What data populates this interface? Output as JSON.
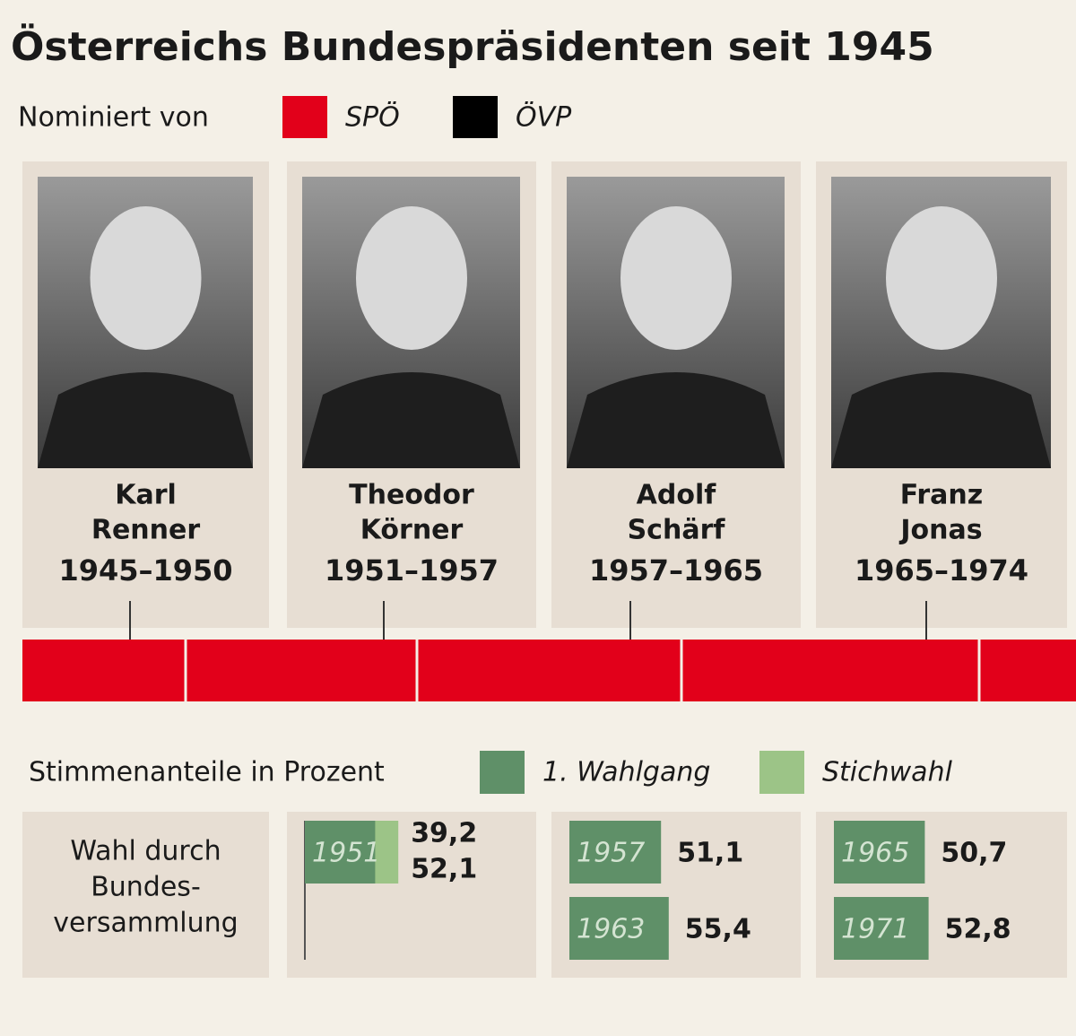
{
  "title": "Österreichs Bundespräsidenten seit 1945",
  "party_legend": {
    "label": "Nominiert von",
    "items": [
      {
        "name": "SPÖ",
        "color": "#e2001a"
      },
      {
        "name": "ÖVP",
        "color": "#000000"
      }
    ]
  },
  "vote_legend": {
    "label": "Stimmenanteile in Prozent",
    "items": [
      {
        "name": "1. Wahlgang",
        "color": "#5f9068"
      },
      {
        "name": "Stichwahl",
        "color": "#9cc487"
      }
    ]
  },
  "presidents": [
    {
      "first": "Karl",
      "last": "Renner",
      "term": "1945–1950",
      "party": "SPÖ",
      "election_note": [
        "Wahl durch",
        "Bundes-",
        "versammlung"
      ]
    },
    {
      "first": "Theodor",
      "last": "Körner",
      "term": "1951–1957",
      "party": "SPÖ",
      "elections": [
        {
          "year": "1951",
          "first_round": 39.2,
          "first_label": "39,2",
          "runoff": 52.1,
          "runoff_label": "52,1"
        }
      ]
    },
    {
      "first": "Adolf",
      "last": "Schärf",
      "term": "1957–1965",
      "party": "SPÖ",
      "elections": [
        {
          "year": "1957",
          "first_round": 51.1,
          "first_label": "51,1"
        },
        {
          "year": "1963",
          "first_round": 55.4,
          "first_label": "55,4"
        }
      ]
    },
    {
      "first": "Franz",
      "last": "Jonas",
      "term": "1965–1974",
      "party": "SPÖ",
      "elections": [
        {
          "year": "1965",
          "first_round": 50.7,
          "first_label": "50,7"
        },
        {
          "year": "1971",
          "first_round": 52.8,
          "first_label": "52,8"
        }
      ]
    }
  ]
}
